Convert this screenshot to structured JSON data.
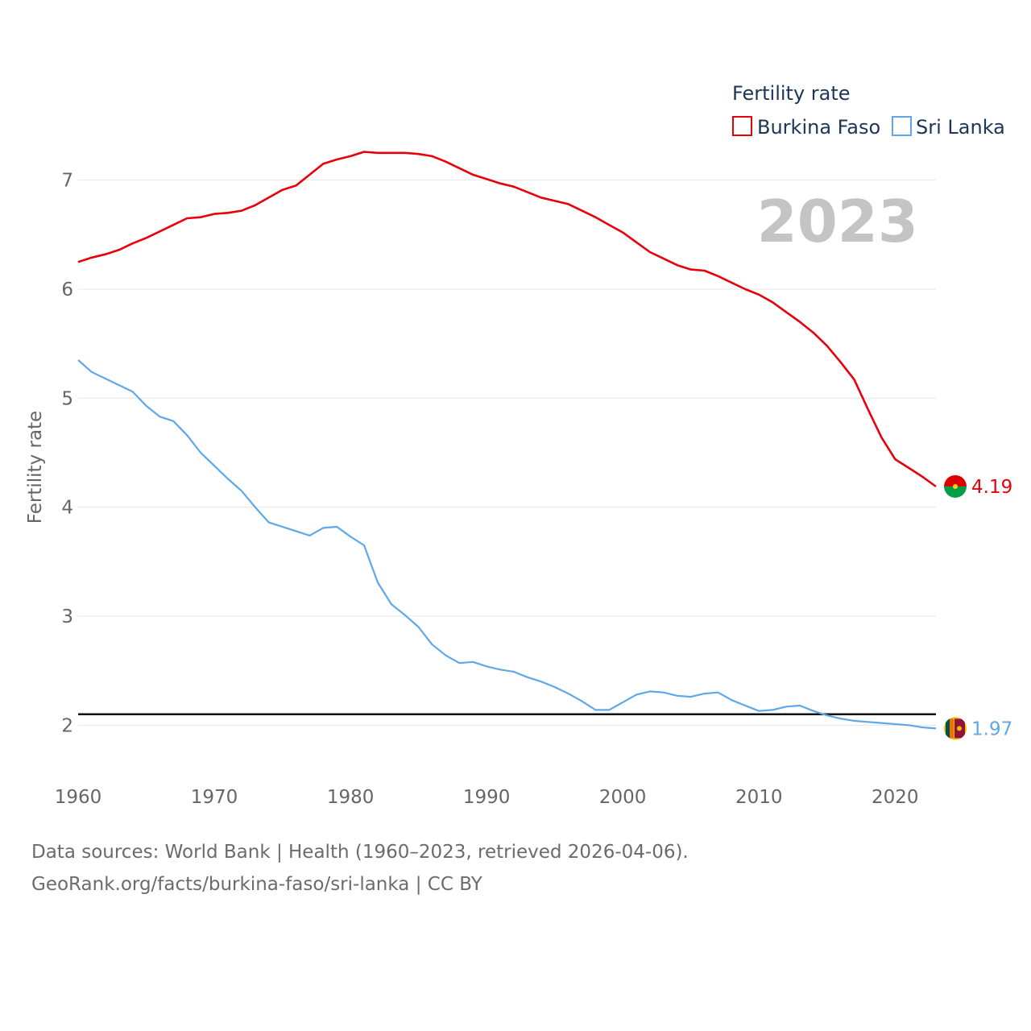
{
  "chart_data": {
    "type": "line",
    "title": "",
    "legend_title": "Fertility rate",
    "legend_position": "top-right",
    "year_label": "2023",
    "ylabel": "Fertility rate",
    "xlabel": "",
    "xlim": [
      1960,
      2023
    ],
    "ylim": [
      1.5,
      7.5
    ],
    "x_ticks": [
      1960,
      1970,
      1980,
      1990,
      2000,
      2010,
      2020
    ],
    "y_ticks": [
      2,
      3,
      4,
      5,
      6,
      7
    ],
    "x_tick_labels": [
      "1960",
      "1970",
      "1980",
      "1990",
      "2000",
      "2010",
      "2020"
    ],
    "y_tick_labels": [
      "2",
      "3",
      "4",
      "5",
      "6",
      "7"
    ],
    "reference_line": {
      "y": 2.1
    },
    "grid": true,
    "x": [
      1960,
      1961,
      1962,
      1963,
      1964,
      1965,
      1966,
      1967,
      1968,
      1969,
      1970,
      1971,
      1972,
      1973,
      1974,
      1975,
      1976,
      1977,
      1978,
      1979,
      1980,
      1981,
      1982,
      1983,
      1984,
      1985,
      1986,
      1987,
      1988,
      1989,
      1990,
      1991,
      1992,
      1993,
      1994,
      1995,
      1996,
      1997,
      1998,
      1999,
      2000,
      2001,
      2002,
      2003,
      2004,
      2005,
      2006,
      2007,
      2008,
      2009,
      2010,
      2011,
      2012,
      2013,
      2014,
      2015,
      2016,
      2017,
      2018,
      2019,
      2020,
      2021,
      2022,
      2023
    ],
    "series": [
      {
        "name": "Burkina Faso",
        "color": "#e8000b",
        "end_label": "4.19",
        "flag": "burkina-faso-flag",
        "values": [
          6.25,
          6.29,
          6.32,
          6.36,
          6.42,
          6.47,
          6.53,
          6.59,
          6.65,
          6.66,
          6.69,
          6.7,
          6.72,
          6.77,
          6.84,
          6.91,
          6.95,
          7.05,
          7.15,
          7.19,
          7.22,
          7.26,
          7.25,
          7.25,
          7.25,
          7.24,
          7.22,
          7.17,
          7.11,
          7.05,
          7.01,
          6.97,
          6.94,
          6.89,
          6.84,
          6.81,
          6.78,
          6.72,
          6.66,
          6.59,
          6.52,
          6.43,
          6.34,
          6.28,
          6.22,
          6.18,
          6.17,
          6.12,
          6.06,
          6.0,
          5.95,
          5.88,
          5.79,
          5.7,
          5.6,
          5.48,
          5.33,
          5.17,
          4.9,
          4.64,
          4.44,
          4.36,
          4.28,
          4.19
        ]
      },
      {
        "name": "Sri Lanka",
        "color": "#5ea8ea",
        "end_label": "1.97",
        "flag": "sri-lanka-flag",
        "values": [
          5.35,
          5.24,
          5.18,
          5.12,
          5.06,
          4.93,
          4.83,
          4.79,
          4.66,
          4.5,
          4.38,
          4.26,
          4.15,
          4.0,
          3.86,
          3.82,
          3.78,
          3.74,
          3.81,
          3.82,
          3.73,
          3.65,
          3.31,
          3.11,
          3.01,
          2.9,
          2.74,
          2.64,
          2.57,
          2.58,
          2.54,
          2.51,
          2.49,
          2.44,
          2.4,
          2.35,
          2.29,
          2.22,
          2.14,
          2.14,
          2.21,
          2.28,
          2.31,
          2.3,
          2.27,
          2.26,
          2.29,
          2.3,
          2.23,
          2.18,
          2.13,
          2.14,
          2.17,
          2.18,
          2.13,
          2.09,
          2.06,
          2.04,
          2.03,
          2.02,
          2.01,
          2.0,
          1.98,
          1.97
        ]
      }
    ]
  },
  "footer": {
    "line1": "Data sources: World Bank | Health (1960–2023, retrieved 2026-04-06).",
    "line2": "GeoRank.org/facts/burkina-faso/sri-lanka | CC BY"
  }
}
